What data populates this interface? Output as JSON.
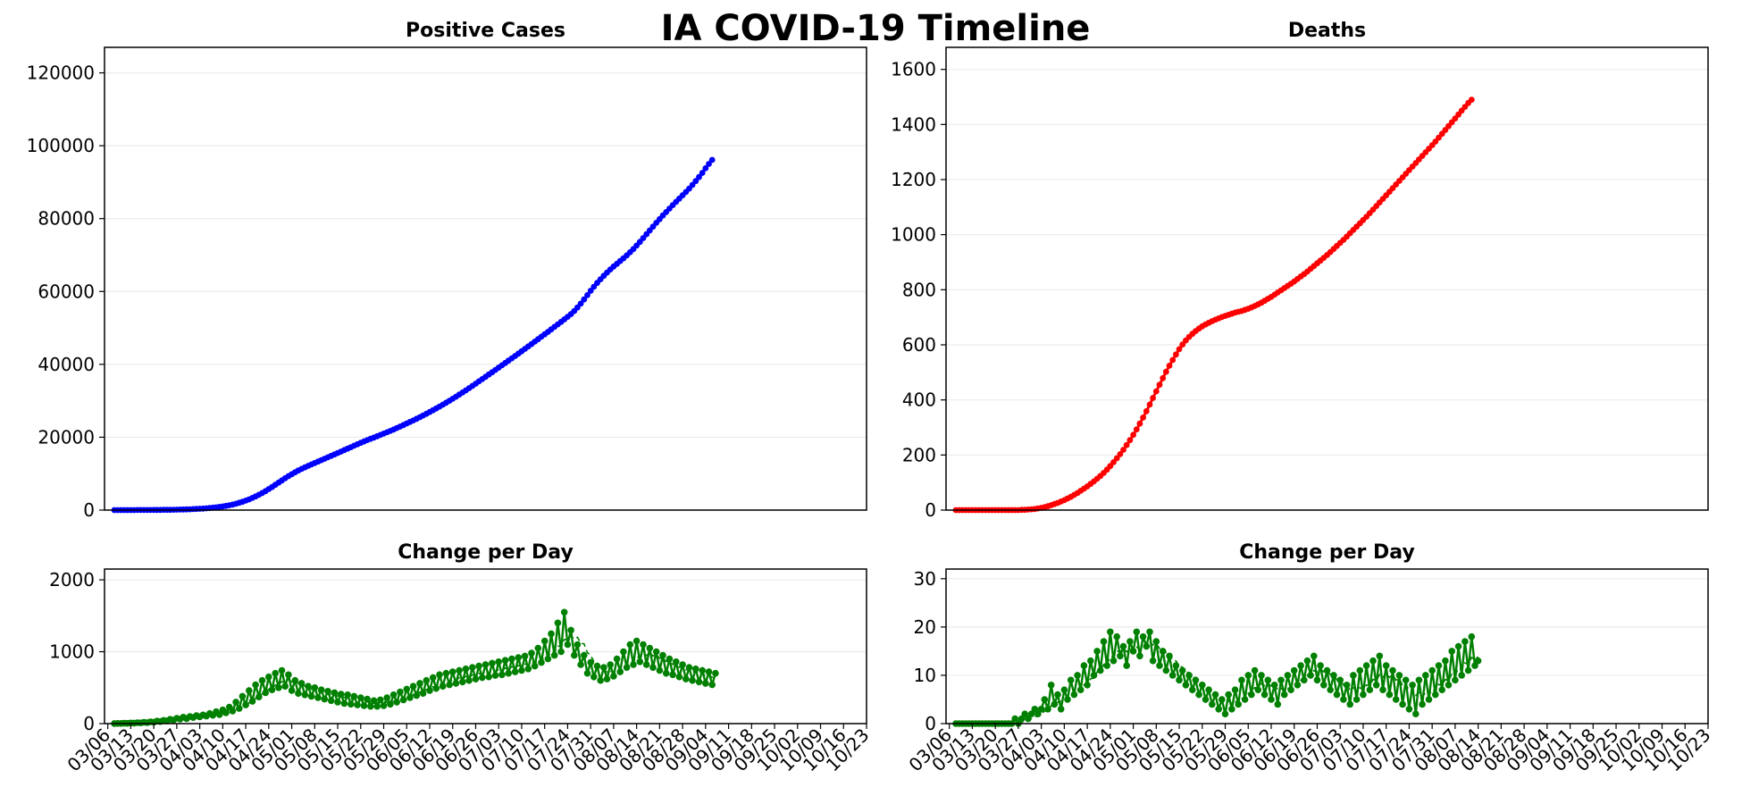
{
  "page_title": "IA COVID-19 Timeline",
  "colors": {
    "cases": "#0000ff",
    "deaths": "#ff0000",
    "change": "#008000",
    "grid": "#ececec"
  },
  "chart_data": [
    {
      "id": "cases",
      "type": "line",
      "title": "Positive Cases",
      "ylim": [
        0,
        127000
      ],
      "yticks": [
        0,
        20000,
        40000,
        60000,
        80000,
        100000,
        120000
      ],
      "grid": true,
      "marker": "dot",
      "color": "#0000ff",
      "series": [
        {
          "values": [
            1,
            1,
            2,
            3,
            5,
            8,
            11,
            14,
            18,
            22,
            26,
            32,
            38,
            45,
            53,
            62,
            72,
            84,
            98,
            115,
            135,
            160,
            190,
            225,
            265,
            310,
            360,
            420,
            490,
            570,
            660,
            760,
            880,
            1010,
            1160,
            1330,
            1520,
            1750,
            2000,
            2280,
            2600,
            2950,
            3330,
            3750,
            4200,
            4680,
            5200,
            5750,
            6330,
            6930,
            7540,
            8150,
            8750,
            9320,
            9860,
            10370,
            10850,
            11300,
            11730,
            12140,
            12540,
            12930,
            13320,
            13710,
            14100,
            14490,
            14880,
            15270,
            15670,
            16070,
            16470,
            16870,
            17270,
            17670,
            18070,
            18460,
            18840,
            19210,
            19570,
            19920,
            20270,
            20620,
            20980,
            21350,
            21730,
            22120,
            22520,
            22930,
            23350,
            23770,
            24190,
            24620,
            25060,
            25510,
            25970,
            26440,
            26920,
            27410,
            27910,
            28420,
            28940,
            29470,
            30010,
            30560,
            31120,
            31690,
            32270,
            32860,
            33460,
            34070,
            34690,
            35320,
            35950,
            36580,
            37210,
            37840,
            38470,
            39100,
            39740,
            40380,
            41020,
            41660,
            42300,
            42950,
            43600,
            44260,
            44920,
            45580,
            46240,
            46910,
            47580,
            48250,
            48920,
            49600,
            50280,
            50970,
            51660,
            52350,
            53050,
            53800,
            54650,
            55600,
            56650,
            57800,
            59000,
            60200,
            61300,
            62350,
            63350,
            64300,
            65200,
            66050,
            66850,
            67600,
            68350,
            69100,
            69900,
            70750,
            71650,
            72600,
            73600,
            74650,
            75700,
            76750,
            77800,
            78850,
            79850,
            80850,
            81800,
            82750,
            83700,
            84600,
            85500,
            86400,
            87300,
            88250,
            89250,
            90300,
            91400,
            92550,
            93800,
            95000,
            96100
          ]
        }
      ],
      "xlim_dates": [
        "03/05",
        "10/23"
      ],
      "xstart": "03/08"
    },
    {
      "id": "deaths",
      "type": "line",
      "title": "Deaths",
      "ylim": [
        0,
        1680
      ],
      "yticks": [
        0,
        200,
        400,
        600,
        800,
        1000,
        1200,
        1400,
        1600
      ],
      "grid": true,
      "marker": "dot",
      "color": "#ff0000",
      "series": [
        {
          "values": [
            0,
            0,
            0,
            0,
            0,
            0,
            0,
            0,
            0,
            0,
            0,
            0,
            0,
            0,
            0,
            0,
            0,
            0,
            0,
            0,
            1,
            1,
            2,
            3,
            4,
            6,
            8,
            11,
            14,
            18,
            22,
            26,
            31,
            36,
            42,
            48,
            55,
            62,
            70,
            78,
            86,
            95,
            104,
            114,
            124,
            135,
            147,
            160,
            174,
            188,
            203,
            219,
            236,
            254,
            273,
            293,
            314,
            336,
            359,
            383,
            407,
            431,
            455,
            479,
            502,
            524,
            545,
            565,
            584,
            601,
            616,
            629,
            640,
            650,
            659,
            667,
            674,
            680,
            686,
            691,
            696,
            701,
            705,
            709,
            713,
            717,
            720,
            723,
            727,
            731,
            736,
            741,
            747,
            753,
            760,
            767,
            774,
            782,
            790,
            798,
            806,
            814,
            822,
            830,
            839,
            848,
            857,
            866,
            876,
            886,
            896,
            906,
            916,
            926,
            937,
            948,
            959,
            970,
            981,
            993,
            1005,
            1017,
            1029,
            1041,
            1053,
            1065,
            1078,
            1091,
            1104,
            1117,
            1130,
            1143,
            1156,
            1169,
            1182,
            1195,
            1208,
            1221,
            1234,
            1247,
            1260,
            1273,
            1286,
            1299,
            1312,
            1325,
            1338,
            1352,
            1366,
            1380,
            1394,
            1408,
            1422,
            1436,
            1450,
            1464,
            1478,
            1490
          ]
        }
      ],
      "xlim_dates": [
        "03/05",
        "10/23"
      ],
      "xstart": "03/08"
    },
    {
      "id": "cases-change",
      "type": "line",
      "title": "Change per Day",
      "ylim": [
        0,
        2150
      ],
      "yticks": [
        0,
        1000,
        2000
      ],
      "grid": true,
      "marker": "dot",
      "color": "#008000",
      "moving_average": "dashed",
      "series": [
        {
          "values": [
            1,
            3,
            2,
            5,
            4,
            9,
            7,
            12,
            10,
            18,
            14,
            25,
            20,
            35,
            28,
            45,
            38,
            60,
            50,
            75,
            62,
            90,
            70,
            100,
            85,
            110,
            95,
            120,
            105,
            140,
            115,
            165,
            125,
            190,
            150,
            230,
            175,
            300,
            210,
            380,
            260,
            460,
            310,
            540,
            370,
            600,
            430,
            650,
            470,
            700,
            500,
            740,
            520,
            680,
            460,
            600,
            420,
            560,
            400,
            520,
            380,
            500,
            360,
            470,
            340,
            450,
            320,
            430,
            300,
            410,
            280,
            400,
            270,
            380,
            260,
            360,
            250,
            340,
            240,
            320,
            240,
            330,
            250,
            360,
            270,
            400,
            300,
            440,
            330,
            480,
            360,
            520,
            390,
            560,
            420,
            600,
            460,
            640,
            490,
            680,
            520,
            700,
            540,
            720,
            560,
            740,
            580,
            760,
            600,
            780,
            620,
            800,
            640,
            820,
            650,
            840,
            670,
            860,
            680,
            880,
            700,
            900,
            720,
            920,
            740,
            940,
            760,
            980,
            800,
            1050,
            850,
            1150,
            900,
            1250,
            950,
            1400,
            1000,
            1550,
            1100,
            1300,
            950,
            1100,
            820,
            950,
            700,
            850,
            650,
            800,
            600,
            780,
            620,
            820,
            660,
            900,
            720,
            1000,
            780,
            1100,
            820,
            1150,
            860,
            1100,
            820,
            1050,
            780,
            1000,
            740,
            950,
            700,
            900,
            680,
            860,
            650,
            820,
            620,
            780,
            600,
            760,
            580,
            740,
            560,
            720,
            540,
            700
          ]
        }
      ],
      "xlim_dates": [
        "03/05",
        "10/23"
      ],
      "xstart": "03/08",
      "xtick_labels": [
        "03/06",
        "03/13",
        "03/20",
        "03/27",
        "04/03",
        "04/10",
        "04/17",
        "04/24",
        "05/01",
        "05/08",
        "05/15",
        "05/22",
        "05/29",
        "06/05",
        "06/12",
        "06/19",
        "06/26",
        "07/03",
        "07/10",
        "07/17",
        "07/24",
        "07/31",
        "08/07",
        "08/14",
        "08/21",
        "08/28",
        "09/04",
        "09/11",
        "09/18",
        "09/25",
        "10/02",
        "10/09",
        "10/16",
        "10/23"
      ]
    },
    {
      "id": "deaths-change",
      "type": "line",
      "title": "Change per Day",
      "ylim": [
        0,
        32
      ],
      "yticks": [
        0,
        10,
        20,
        30
      ],
      "grid": true,
      "marker": "dot",
      "color": "#008000",
      "moving_average": "dashed",
      "series": [
        {
          "values": [
            0,
            0,
            0,
            0,
            0,
            0,
            0,
            0,
            0,
            0,
            0,
            0,
            0,
            0,
            0,
            0,
            0,
            0,
            1,
            0,
            1,
            2,
            1,
            2,
            3,
            2,
            3,
            5,
            3,
            8,
            4,
            6,
            3,
            7,
            5,
            9,
            6,
            10,
            7,
            12,
            8,
            13,
            10,
            15,
            11,
            17,
            12,
            19,
            13,
            18,
            14,
            16,
            12,
            17,
            15,
            19,
            14,
            18,
            16,
            19,
            13,
            17,
            12,
            15,
            11,
            14,
            10,
            12,
            9,
            11,
            8,
            10,
            7,
            9,
            6,
            8,
            5,
            7,
            4,
            6,
            3,
            5,
            2,
            6,
            3,
            7,
            4,
            9,
            5,
            10,
            6,
            11,
            7,
            10,
            6,
            9,
            5,
            8,
            4,
            9,
            6,
            10,
            7,
            11,
            8,
            12,
            9,
            13,
            10,
            14,
            9,
            12,
            8,
            11,
            7,
            10,
            6,
            9,
            5,
            8,
            4,
            10,
            5,
            11,
            6,
            12,
            7,
            13,
            8,
            14,
            7,
            12,
            6,
            11,
            5,
            10,
            4,
            9,
            3,
            8,
            2,
            9,
            4,
            10,
            5,
            11,
            6,
            12,
            7,
            13,
            8,
            15,
            9,
            16,
            10,
            17,
            11,
            18,
            12,
            13
          ]
        }
      ],
      "xlim_dates": [
        "03/05",
        "10/23"
      ],
      "xstart": "03/08",
      "xtick_labels": [
        "03/06",
        "03/13",
        "03/20",
        "03/27",
        "04/03",
        "04/10",
        "04/17",
        "04/24",
        "05/01",
        "05/08",
        "05/15",
        "05/22",
        "05/29",
        "06/05",
        "06/12",
        "06/19",
        "06/26",
        "07/03",
        "07/10",
        "07/17",
        "07/24",
        "07/31",
        "08/07",
        "08/14",
        "08/21",
        "08/28",
        "09/04",
        "09/11",
        "09/18",
        "09/25",
        "10/02",
        "10/09",
        "10/16",
        "10/23"
      ]
    }
  ]
}
